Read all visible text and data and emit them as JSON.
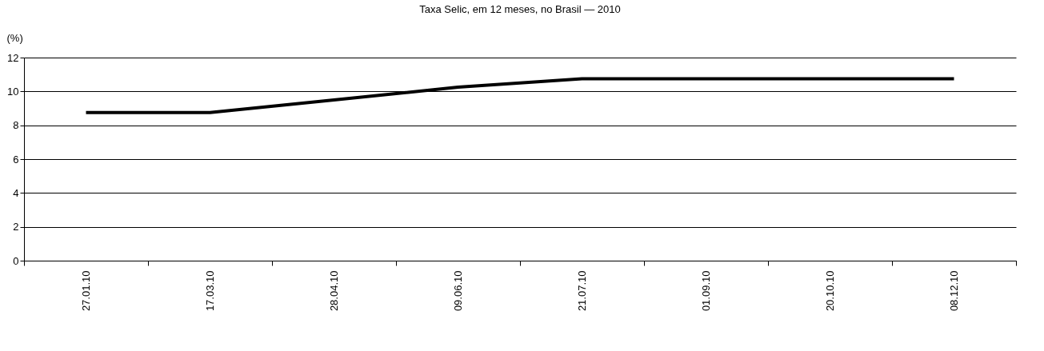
{
  "chart_data": {
    "type": "line",
    "title": "Taxa Selic, em 12 meses, no Brasil — 2010",
    "ylabel": "(%)",
    "categories": [
      "27.01.10",
      "17.03.10",
      "28.04.10",
      "09.06.10",
      "21.07.10",
      "01.09.10",
      "20.10.10",
      "08.12.10"
    ],
    "series": [
      {
        "color": "#000000",
        "values": [
          8.75,
          8.75,
          9.5,
          10.25,
          10.75,
          10.75,
          10.75,
          10.75
        ]
      }
    ],
    "ylim": [
      0,
      12
    ],
    "yticks": [
      0,
      2,
      4,
      6,
      8,
      10,
      12
    ],
    "grid": "y",
    "legend": false,
    "marker": "none",
    "line_style": "solid"
  }
}
